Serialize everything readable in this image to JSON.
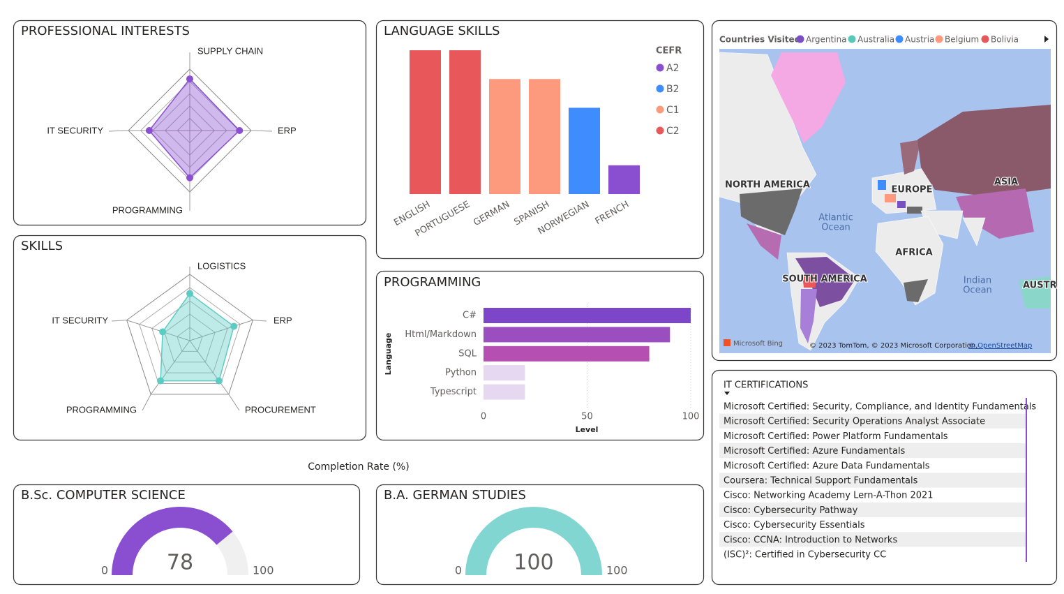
{
  "chart_data": [
    {
      "type": "radar",
      "title": "PROFESSIONAL INTERESTS",
      "categories": [
        "SUPPLY CHAIN",
        "ERP",
        "PROGRAMMING",
        "IT SECURITY"
      ],
      "values": [
        84,
        81,
        77,
        66
      ],
      "rlim": [
        0,
        100
      ],
      "color": "#8a4fd0"
    },
    {
      "type": "radar",
      "title": "SKILLS",
      "categories": [
        "LOGISTICS",
        "ERP",
        "PROCUREMENT",
        "PROGRAMMING",
        "IT SECURITY"
      ],
      "values": [
        71,
        70,
        75,
        75,
        43
      ],
      "rlim": [
        0,
        100
      ],
      "color": "#5ccbc4"
    },
    {
      "type": "bar",
      "title": "LANGUAGE SKILLS",
      "categories": [
        "ENGLISH",
        "PORTUGUESE",
        "GERMAN",
        "SPANISH",
        "NORWEGIAN",
        "FRENCH"
      ],
      "values": [
        5,
        5,
        4,
        4,
        3,
        1
      ],
      "levels": [
        "C2",
        "C2",
        "C1",
        "C1",
        "B2",
        "A2"
      ],
      "ylim": [
        0,
        5
      ],
      "legend_title": "CEFR",
      "legend": [
        {
          "name": "A2",
          "color": "#8a4fd0"
        },
        {
          "name": "B2",
          "color": "#3f8cff"
        },
        {
          "name": "C1",
          "color": "#fd9a7e"
        },
        {
          "name": "C2",
          "color": "#e8575a"
        }
      ]
    },
    {
      "type": "hbar",
      "title": "PROGRAMMING",
      "categories": [
        "C#",
        "Html/Markdown",
        "SQL",
        "Python",
        "Typescript"
      ],
      "values": [
        100,
        90,
        80,
        20,
        20
      ],
      "colors": [
        "#7d45c8",
        "#9b4ec0",
        "#b64fb2",
        "#e5d8f0",
        "#e5d8f0"
      ],
      "xlim": [
        0,
        100
      ],
      "xticks": [
        0,
        50,
        100
      ],
      "xlabel": "Level",
      "ylabel": "Language",
      "grid": true
    },
    {
      "type": "gauge",
      "title": "B.Sc. COMPUTER SCIENCE",
      "value": 78,
      "min": 0,
      "max": 100,
      "color": "#8a4fd0"
    },
    {
      "type": "gauge",
      "title": "B.A. GERMAN STUDIES",
      "value": 100,
      "min": 0,
      "max": 100,
      "color": "#82d6d2"
    }
  ],
  "gauge_caption": "Completion Rate (%)",
  "map": {
    "title": "Countries Visited",
    "legend": [
      {
        "name": "Argentina",
        "color": "#7b4fc4"
      },
      {
        "name": "Australia",
        "color": "#58c9b9"
      },
      {
        "name": "Austria",
        "color": "#3f8cff"
      },
      {
        "name": "Belgium",
        "color": "#fd9a7e"
      },
      {
        "name": "Bolivia",
        "color": "#e8575a"
      }
    ],
    "regions": [
      "NORTH AMERICA",
      "EUROPE",
      "ASIA",
      "AFRICA",
      "SOUTH AMERICA",
      "AUSTR"
    ],
    "oceans": [
      "Atlantic",
      "Ocean",
      "Indian",
      "Ocean"
    ],
    "provider": "Microsoft Bing",
    "attribution": "© 2023 TomTom, © 2023 Microsoft Corporation,",
    "attribution_link": "© OpenStreetMap"
  },
  "certifications": {
    "title": "IT CERTIFICATIONS",
    "items": [
      "Microsoft Certified: Security, Compliance, and Identity Fundamentals",
      "Microsoft Certified: Security Operations Analyst Associate",
      "Microsoft Certified: Power Platform Fundamentals",
      "Microsoft Certified: Azure Fundamentals",
      "Microsoft Certified: Azure Data Fundamentals",
      "Coursera: Technical Support Fundamentals",
      "Cisco: Networking Academy Lern-A-Thon 2021",
      "Cisco: Cybersecurity Pathway",
      "Cisco: Cybersecurity Essentials",
      "Cisco: CCNA: Introduction to Networks",
      "(ISC)²: Certified in Cybersecurity CC"
    ]
  }
}
